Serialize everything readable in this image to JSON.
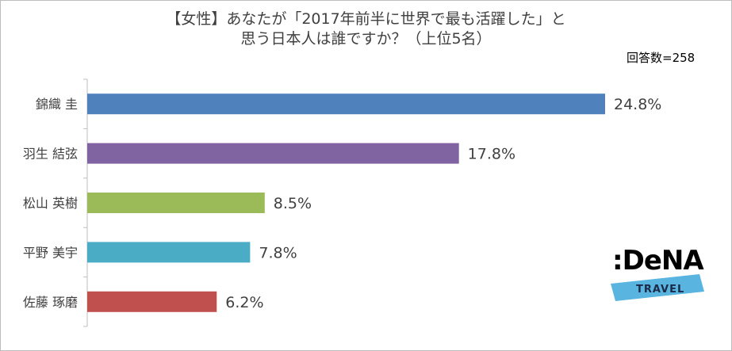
{
  "chart_data": {
    "type": "bar",
    "orientation": "horizontal",
    "title_lines": [
      "【女性】あなたが「2017年前半に世界で最も活躍した」と",
      "思う日本人は誰ですか？（上位5名）"
    ],
    "note": "回答数=258",
    "categories": [
      "錦織 圭",
      "羽生 結弦",
      "松山 英樹",
      "平野 美宇",
      "佐藤 琢磨"
    ],
    "values": [
      24.8,
      17.8,
      8.5,
      7.8,
      6.2
    ],
    "value_labels": [
      "24.8%",
      "17.8%",
      "8.5%",
      "7.8%",
      "6.2%"
    ],
    "colors": [
      "#4f81bd",
      "#8064a2",
      "#9bbb59",
      "#4bacc6",
      "#c0504d"
    ],
    "xlim": [
      0,
      25
    ],
    "grid": false,
    "legend": "none"
  },
  "logo": {
    "brand": ":DeNA",
    "sub": "TRAVEL"
  }
}
